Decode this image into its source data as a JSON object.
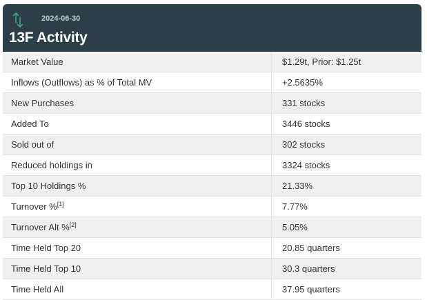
{
  "header": {
    "date": "2024-06-30",
    "title": "13F Activity",
    "icon": "up-down-arrows-icon",
    "icon_color": "#3fa58a",
    "background_color": "#2c3e48"
  },
  "rows": [
    {
      "label": "Market Value",
      "footnote": "",
      "value": "$1.29t, Prior: $1.25t"
    },
    {
      "label": "Inflows (Outflows) as % of Total MV",
      "footnote": "",
      "value": "+2.5635%",
      "value_color": "#1e8a1e"
    },
    {
      "label": "New Purchases",
      "footnote": "",
      "value": "331 stocks"
    },
    {
      "label": "Added To",
      "footnote": "",
      "value": "3446 stocks"
    },
    {
      "label": "Sold out of",
      "footnote": "",
      "value": "302 stocks"
    },
    {
      "label": "Reduced holdings in",
      "footnote": "",
      "value": "3324 stocks"
    },
    {
      "label": "Top 10 Holdings %",
      "footnote": "",
      "value": "21.33%"
    },
    {
      "label": "Turnover %",
      "footnote": "[1]",
      "value": "7.77%"
    },
    {
      "label": "Turnover Alt %",
      "footnote": "[2]",
      "value": "5.05%"
    },
    {
      "label": "Time Held Top 20",
      "footnote": "",
      "value": "20.85 quarters"
    },
    {
      "label": "Time Held Top 10",
      "footnote": "",
      "value": "30.3 quarters"
    },
    {
      "label": "Time Held All",
      "footnote": "",
      "value": "37.95 quarters"
    }
  ]
}
